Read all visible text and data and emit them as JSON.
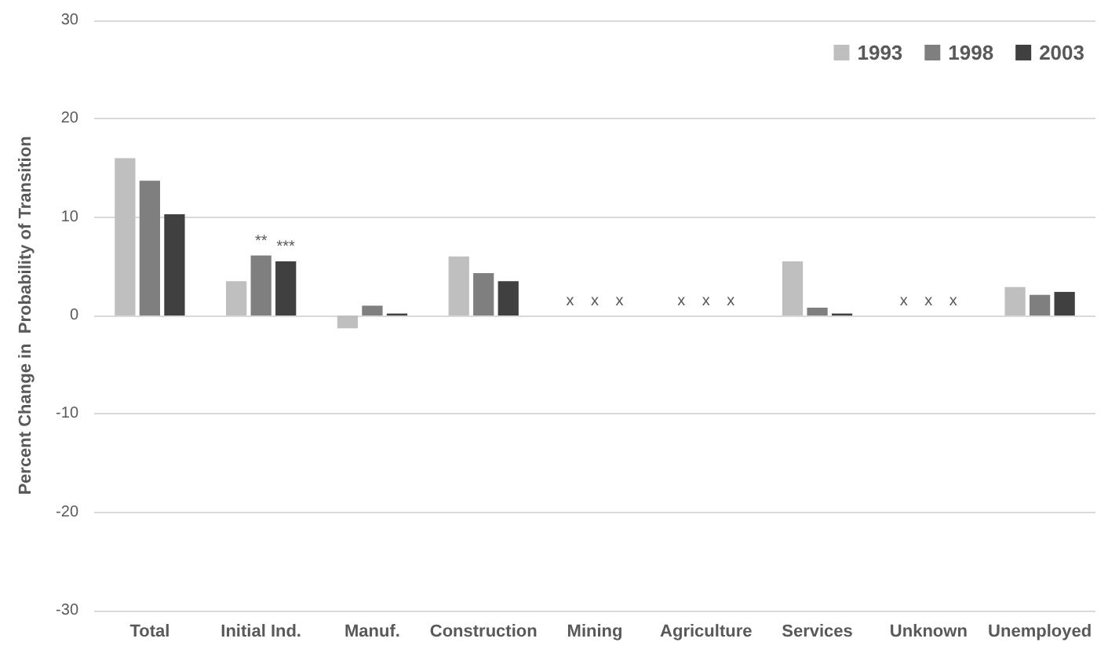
{
  "chart_data": {
    "type": "bar",
    "ylabel": "Percent Change in  Probability of Transition",
    "categories": [
      "Total",
      "Initial Ind.",
      "Manuf.",
      "Construction",
      "Mining",
      "Agriculture",
      "Services",
      "Unknown",
      "Unemployed"
    ],
    "series": [
      {
        "name": "1993",
        "color": "#bfbfbf",
        "values": [
          16.0,
          3.5,
          -1.3,
          6.0,
          null,
          null,
          5.5,
          null,
          2.9
        ],
        "value_labels": [
          null,
          null,
          null,
          null,
          "x",
          "x",
          null,
          "x",
          null
        ]
      },
      {
        "name": "1998",
        "color": "#7f7f7f",
        "values": [
          13.7,
          6.1,
          1.0,
          4.3,
          null,
          null,
          0.8,
          null,
          2.1
        ],
        "value_labels": [
          null,
          "**",
          null,
          null,
          "x",
          "x",
          null,
          "x",
          null
        ]
      },
      {
        "name": "2003",
        "color": "#404040",
        "values": [
          10.3,
          5.5,
          0.2,
          3.5,
          null,
          null,
          0.2,
          null,
          2.4
        ],
        "value_labels": [
          null,
          "***",
          null,
          null,
          "x",
          "x",
          null,
          "x",
          null
        ]
      }
    ],
    "ylim": [
      -30,
      30
    ],
    "yticks": [
      -30,
      -20,
      -10,
      0,
      10,
      20,
      30
    ],
    "grid": "y",
    "legend": "top right"
  }
}
